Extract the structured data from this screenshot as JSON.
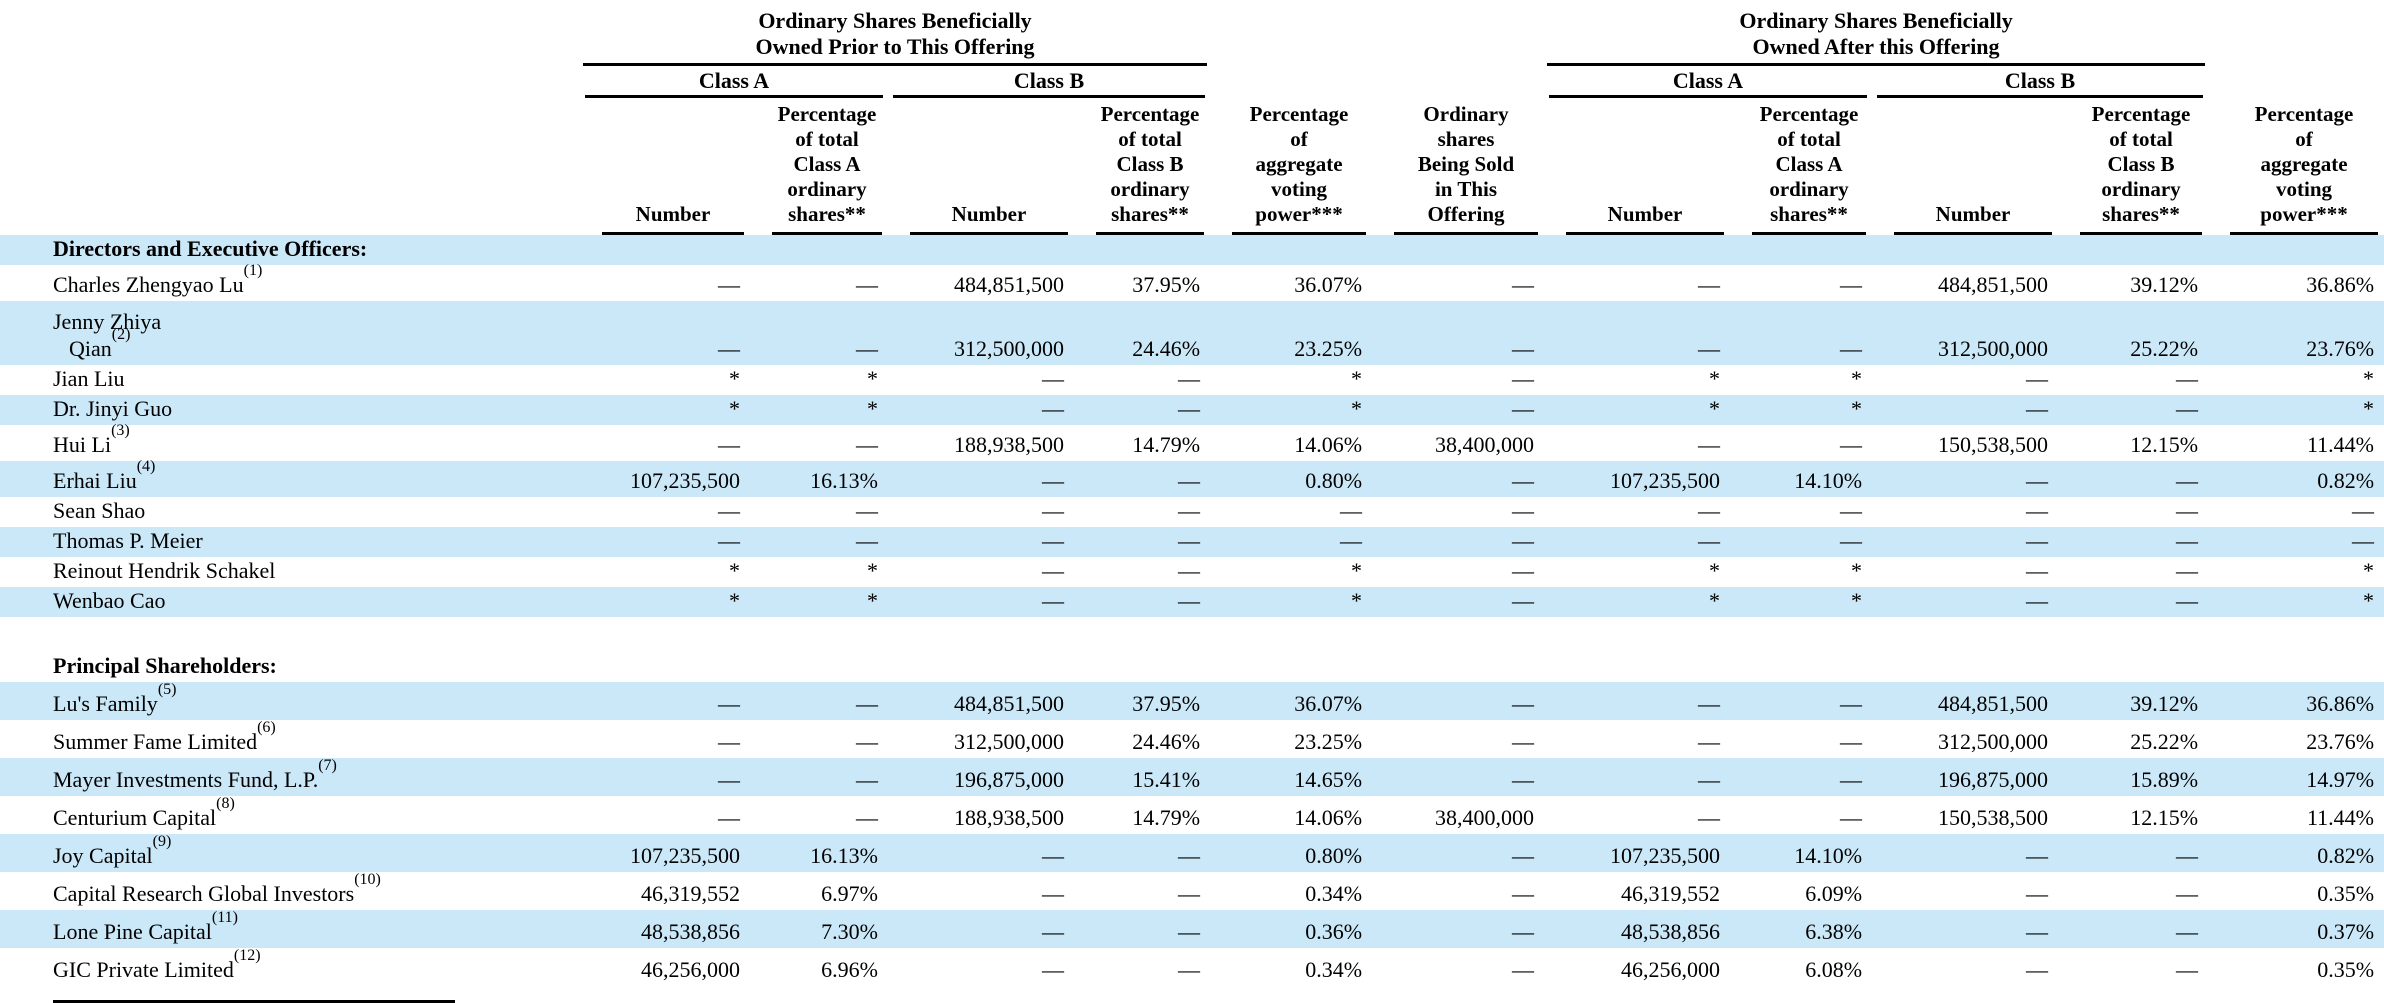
{
  "colors": {
    "row_highlight": "#cbe8f8",
    "text": "#000000",
    "rule": "#000000"
  },
  "header": {
    "prior_group_title": "Ordinary Shares Beneficially\nOwned Prior to This Offering",
    "after_group_title": "Ordinary Shares Beneficially\nOwned After this Offering",
    "class_a_label": "Class A",
    "class_b_label": "Class B",
    "columns": {
      "number": "Number",
      "pct_total_class_a": "Percentage\nof total\nClass A\nordinary\nshares**",
      "pct_total_class_b": "Percentage\nof total\nClass B\nordinary\nshares**",
      "pct_aggregate_voting": "Percentage\nof\naggregate\nvoting\npower***",
      "shares_being_sold": "Ordinary\nshares\nBeing Sold\nin This\nOffering"
    }
  },
  "sections": [
    {
      "label": "Directors and Executive Officers:",
      "rows": [
        {
          "name": "Charles Zhengyao Lu",
          "footnote": "(1)",
          "values": [
            "—",
            "—",
            "484,851,500",
            "37.95%",
            "36.07%",
            "—",
            "—",
            "—",
            "484,851,500",
            "39.12%",
            "36.86%"
          ]
        },
        {
          "name": "Jenny Zhiya",
          "name_line2": "Qian",
          "footnote": "(2)",
          "values": [
            "—",
            "—",
            "312,500,000",
            "24.46%",
            "23.25%",
            "—",
            "—",
            "—",
            "312,500,000",
            "25.22%",
            "23.76%"
          ]
        },
        {
          "name": "Jian Liu",
          "values": [
            "*",
            "*",
            "—",
            "—",
            "*",
            "—",
            "*",
            "*",
            "—",
            "—",
            "*"
          ]
        },
        {
          "name": "Dr. Jinyi Guo",
          "values": [
            "*",
            "*",
            "—",
            "—",
            "*",
            "—",
            "*",
            "*",
            "—",
            "—",
            "*"
          ]
        },
        {
          "name": "Hui Li",
          "footnote": "(3)",
          "values": [
            "—",
            "—",
            "188,938,500",
            "14.79%",
            "14.06%",
            "38,400,000",
            "—",
            "—",
            "150,538,500",
            "12.15%",
            "11.44%"
          ]
        },
        {
          "name": "Erhai Liu",
          "footnote": "(4)",
          "values": [
            "107,235,500",
            "16.13%",
            "—",
            "—",
            "0.80%",
            "—",
            "107,235,500",
            "14.10%",
            "—",
            "—",
            "0.82%"
          ]
        },
        {
          "name": "Sean Shao",
          "values": [
            "—",
            "—",
            "—",
            "—",
            "—",
            "—",
            "—",
            "—",
            "—",
            "—",
            "—"
          ]
        },
        {
          "name": "Thomas P. Meier",
          "values": [
            "—",
            "—",
            "—",
            "—",
            "—",
            "—",
            "—",
            "—",
            "—",
            "—",
            "—"
          ]
        },
        {
          "name": "Reinout Hendrik Schakel",
          "values": [
            "*",
            "*",
            "—",
            "—",
            "*",
            "—",
            "*",
            "*",
            "—",
            "—",
            "*"
          ]
        },
        {
          "name": "Wenbao Cao",
          "values": [
            "*",
            "*",
            "—",
            "—",
            "*",
            "—",
            "*",
            "*",
            "—",
            "—",
            "*"
          ]
        }
      ]
    },
    {
      "label": "Principal Shareholders:",
      "rows": [
        {
          "name": "Lu's Family",
          "footnote": "(5)",
          "values": [
            "—",
            "—",
            "484,851,500",
            "37.95%",
            "36.07%",
            "—",
            "—",
            "—",
            "484,851,500",
            "39.12%",
            "36.86%"
          ]
        },
        {
          "name": "Summer Fame Limited",
          "footnote": "(6)",
          "values": [
            "—",
            "—",
            "312,500,000",
            "24.46%",
            "23.25%",
            "—",
            "—",
            "—",
            "312,500,000",
            "25.22%",
            "23.76%"
          ]
        },
        {
          "name": "Mayer Investments Fund, L.P.",
          "footnote": "(7)",
          "values": [
            "—",
            "—",
            "196,875,000",
            "15.41%",
            "14.65%",
            "—",
            "—",
            "—",
            "196,875,000",
            "15.89%",
            "14.97%"
          ]
        },
        {
          "name": "Centurium Capital",
          "footnote": "(8)",
          "values": [
            "—",
            "—",
            "188,938,500",
            "14.79%",
            "14.06%",
            "38,400,000",
            "—",
            "—",
            "150,538,500",
            "12.15%",
            "11.44%"
          ]
        },
        {
          "name": "Joy Capital",
          "footnote": "(9)",
          "values": [
            "107,235,500",
            "16.13%",
            "—",
            "—",
            "0.80%",
            "—",
            "107,235,500",
            "14.10%",
            "—",
            "—",
            "0.82%"
          ]
        },
        {
          "name": "Capital Research Global Investors",
          "footnote": "(10)",
          "values": [
            "46,319,552",
            "6.97%",
            "—",
            "—",
            "0.34%",
            "—",
            "46,319,552",
            "6.09%",
            "—",
            "—",
            "0.35%"
          ]
        },
        {
          "name": "Lone Pine Capital",
          "footnote": "(11)",
          "values": [
            "48,538,856",
            "7.30%",
            "—",
            "—",
            "0.36%",
            "—",
            "48,538,856",
            "6.38%",
            "—",
            "—",
            "0.37%"
          ]
        },
        {
          "name": "GIC Private Limited",
          "footnote": "(12)",
          "values": [
            "46,256,000",
            "6.96%",
            "—",
            "—",
            "0.34%",
            "—",
            "46,256,000",
            "6.08%",
            "—",
            "—",
            "0.35%"
          ]
        }
      ]
    }
  ]
}
